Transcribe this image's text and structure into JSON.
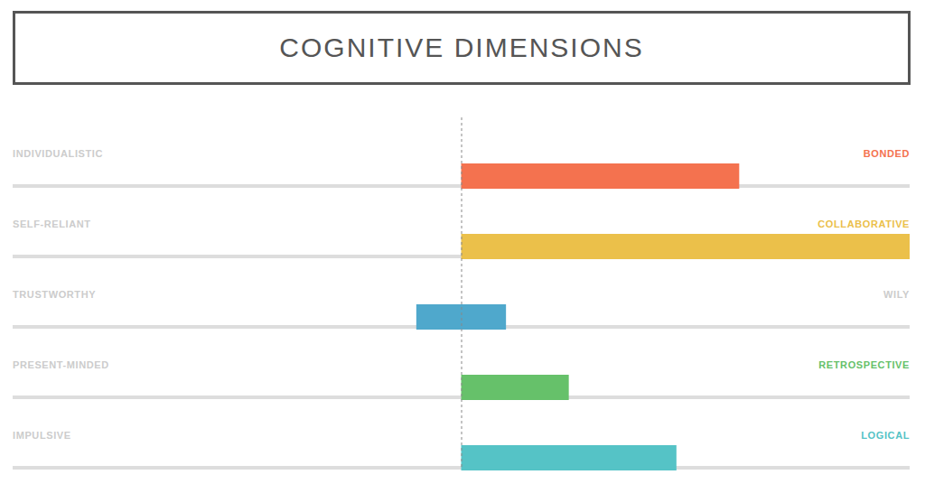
{
  "chart_data": {
    "type": "bar",
    "orientation": "horizontal",
    "title": "COGNITIVE DIMENSIONS",
    "categories": [
      "INDIVIDUALISTIC",
      "SELF-RELIANT",
      "TRUSTWORTHY",
      "PRESENT-MINDED",
      "IMPULSIVE"
    ],
    "right_labels": [
      "BONDED",
      "COLLABORATIVE",
      "WILY",
      "RETROSPECTIVE",
      "LOGICAL"
    ],
    "values": [
      [
        0,
        62
      ],
      [
        0,
        100
      ],
      [
        -10,
        10
      ],
      [
        0,
        24
      ],
      [
        0,
        48
      ]
    ],
    "colors": [
      "#f4724f",
      "#ebc04a",
      "#4fa8cc",
      "#66c16a",
      "#55c3c6"
    ],
    "xlim": [
      -100,
      100
    ],
    "tick_labels": false,
    "grid": false
  }
}
